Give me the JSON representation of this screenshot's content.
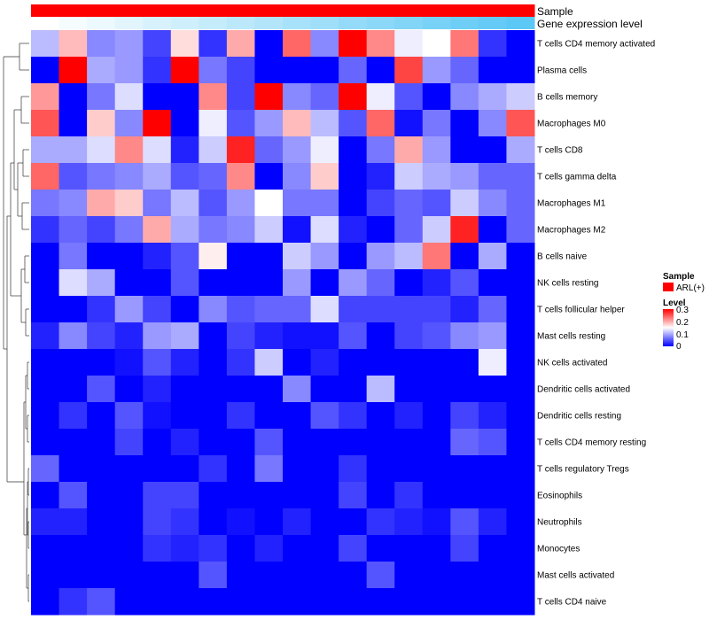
{
  "chart_data": {
    "type": "heatmap",
    "title": "",
    "annotations": {
      "sample_label": "Sample",
      "sample_color": "#ff0000",
      "gene_label": "Gene expression level",
      "gene_start_color": "#ffffff",
      "gene_end_color": "#5bc8f5"
    },
    "columns": 18,
    "rows": [
      "T cells CD4 memory activated",
      "Plasma cells",
      "B cells memory",
      "Macrophages M0",
      "T cells CD8",
      "T cells gamma delta",
      "Macrophages M1",
      "Macrophages M2",
      "B cells naive",
      "NK cells resting",
      "T cells follicular helper",
      "Mast cells resting",
      "NK cells activated",
      "Dendritic cells activated",
      "Dendritic cells resting",
      "T cells CD4 memory resting",
      "T cells regulatory  Tregs",
      "Eosinophils",
      "Neutrophils",
      "Monocytes",
      "Mast cells activated",
      "T cells CD4 naive"
    ],
    "values": [
      [
        0.11,
        0.19,
        0.08,
        0.09,
        0.04,
        0.17,
        0.03,
        0.2,
        0.0,
        0.24,
        0.08,
        0.3,
        0.22,
        0.14,
        0.15,
        0.23,
        0.03,
        0.0
      ],
      [
        0.0,
        0.3,
        0.1,
        0.09,
        0.03,
        0.3,
        0.07,
        0.04,
        0.0,
        0.0,
        0.0,
        0.06,
        0.0,
        0.26,
        0.09,
        0.06,
        0.0,
        0.0
      ],
      [
        0.21,
        0.0,
        0.07,
        0.13,
        0.0,
        0.0,
        0.22,
        0.04,
        0.3,
        0.08,
        0.06,
        0.3,
        0.14,
        0.05,
        0.0,
        0.08,
        0.1,
        0.12
      ],
      [
        0.25,
        0.0,
        0.18,
        0.08,
        0.3,
        0.0,
        0.14,
        0.05,
        0.09,
        0.19,
        0.11,
        0.05,
        0.24,
        0.01,
        0.07,
        0.0,
        0.08,
        0.25
      ],
      [
        0.1,
        0.1,
        0.13,
        0.22,
        0.13,
        0.02,
        0.12,
        0.28,
        0.06,
        0.09,
        0.14,
        0.0,
        0.07,
        0.2,
        0.09,
        0.0,
        0.0,
        0.1
      ],
      [
        0.24,
        0.05,
        0.07,
        0.08,
        0.1,
        0.05,
        0.06,
        0.22,
        0.0,
        0.08,
        0.18,
        0.0,
        0.02,
        0.12,
        0.1,
        0.09,
        0.06,
        0.06
      ],
      [
        0.07,
        0.08,
        0.2,
        0.18,
        0.07,
        0.11,
        0.05,
        0.09,
        0.15,
        0.07,
        0.07,
        0.0,
        0.04,
        0.06,
        0.05,
        0.12,
        0.08,
        0.06
      ],
      [
        0.03,
        0.06,
        0.04,
        0.07,
        0.2,
        0.1,
        0.07,
        0.08,
        0.12,
        0.01,
        0.13,
        0.02,
        0.0,
        0.06,
        0.12,
        0.28,
        0.0,
        0.06
      ],
      [
        0.0,
        0.07,
        0.0,
        0.0,
        0.02,
        0.05,
        0.16,
        0.0,
        0.0,
        0.12,
        0.09,
        0.0,
        0.09,
        0.11,
        0.23,
        0.0,
        0.1,
        0.0
      ],
      [
        0.0,
        0.13,
        0.1,
        0.0,
        0.0,
        0.05,
        0.0,
        0.0,
        0.0,
        0.09,
        0.0,
        0.09,
        0.06,
        0.0,
        0.02,
        0.05,
        0.0,
        0.0
      ],
      [
        0.0,
        0.0,
        0.03,
        0.09,
        0.04,
        0.0,
        0.08,
        0.05,
        0.06,
        0.06,
        0.13,
        0.04,
        0.04,
        0.04,
        0.04,
        0.02,
        0.06,
        0.0
      ],
      [
        0.02,
        0.08,
        0.04,
        0.02,
        0.09,
        0.1,
        0.0,
        0.04,
        0.02,
        0.01,
        0.01,
        0.05,
        0.0,
        0.04,
        0.05,
        0.08,
        0.09,
        0.0
      ],
      [
        0.0,
        0.0,
        0.0,
        0.01,
        0.05,
        0.02,
        0.0,
        0.03,
        0.12,
        0.0,
        0.02,
        0.0,
        0.0,
        0.0,
        0.0,
        0.0,
        0.14,
        0.0
      ],
      [
        0.0,
        0.0,
        0.05,
        0.0,
        0.02,
        0.0,
        0.0,
        0.0,
        0.0,
        0.08,
        0.0,
        0.0,
        0.11,
        0.0,
        0.0,
        0.0,
        0.0,
        0.0
      ],
      [
        0.0,
        0.03,
        0.0,
        0.05,
        0.01,
        0.0,
        0.0,
        0.03,
        0.0,
        0.0,
        0.05,
        0.03,
        0.0,
        0.02,
        0.0,
        0.04,
        0.02,
        0.0
      ],
      [
        0.0,
        0.0,
        0.0,
        0.04,
        0.0,
        0.02,
        0.0,
        0.0,
        0.05,
        0.0,
        0.0,
        0.0,
        0.0,
        0.0,
        0.0,
        0.06,
        0.05,
        0.0
      ],
      [
        0.06,
        0.0,
        0.0,
        0.0,
        0.0,
        0.0,
        0.03,
        0.0,
        0.07,
        0.0,
        0.0,
        0.03,
        0.0,
        0.0,
        0.0,
        0.0,
        0.0,
        0.0
      ],
      [
        0.0,
        0.05,
        0.0,
        0.0,
        0.04,
        0.04,
        0.0,
        0.0,
        0.0,
        0.0,
        0.0,
        0.04,
        0.0,
        0.03,
        0.0,
        0.0,
        0.0,
        0.0
      ],
      [
        0.02,
        0.02,
        0.0,
        0.0,
        0.04,
        0.03,
        0.0,
        0.01,
        0.0,
        0.02,
        0.0,
        0.0,
        0.03,
        0.02,
        0.01,
        0.05,
        0.02,
        0.0
      ],
      [
        0.0,
        0.0,
        0.0,
        0.0,
        0.03,
        0.02,
        0.03,
        0.0,
        0.02,
        0.0,
        0.0,
        0.04,
        0.0,
        0.0,
        0.0,
        0.04,
        0.0,
        0.0
      ],
      [
        0.0,
        0.0,
        0.0,
        0.0,
        0.0,
        0.0,
        0.05,
        0.0,
        0.0,
        0.0,
        0.0,
        0.0,
        0.05,
        0.0,
        0.0,
        0.0,
        0.0,
        0.0
      ],
      [
        0.0,
        0.03,
        0.05,
        0.0,
        0.0,
        0.0,
        0.0,
        0.0,
        0.0,
        0.0,
        0.0,
        0.0,
        0.0,
        0.0,
        0.0,
        0.0,
        0.0,
        0.0
      ]
    ],
    "value_range": [
      0,
      0.3
    ],
    "color_scale": {
      "low": "#0000ff",
      "mid": "#ffffff",
      "high": "#ff0000",
      "mid_value": 0.15
    },
    "legend": {
      "placement": "right",
      "sample_title": "Sample",
      "sample_entry": "ARL(+)",
      "level_title": "Level",
      "level_ticks": [
        "0.3",
        "0.2",
        "0.1",
        "0"
      ]
    },
    "row_dendrogram": true
  }
}
